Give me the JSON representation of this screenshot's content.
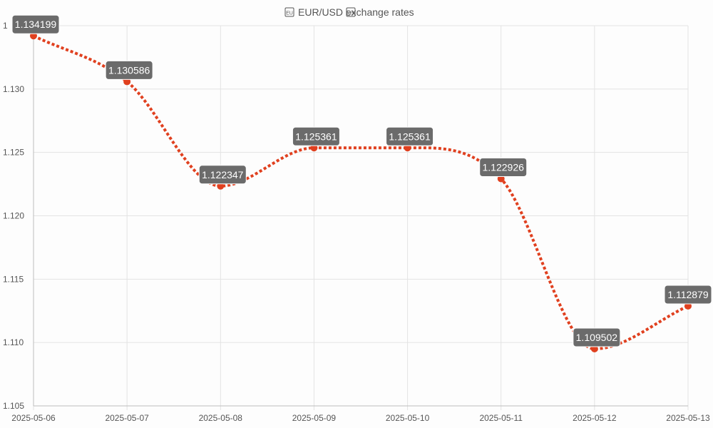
{
  "chart_data": {
    "type": "line",
    "title": "EUR/USD exchange rates",
    "title_icon_left": "eu-flag-icon",
    "title_icon_right": "us-flag-icon",
    "x": [
      "2025-05-06",
      "2025-05-07",
      "2025-05-08",
      "2025-05-09",
      "2025-05-10",
      "2025-05-11",
      "2025-05-12",
      "2025-05-13"
    ],
    "series": [
      {
        "values": [
          1.134199,
          1.130586,
          1.122347,
          1.125361,
          1.125361,
          1.122926,
          1.109502,
          1.112879
        ],
        "color": "#e0401f",
        "line_style": "dotted",
        "smooth": true
      }
    ],
    "data_labels": [
      "1.134199",
      "1.130586",
      "1.122347",
      "1.125361",
      "1.125361",
      "1.122926",
      "1.109502",
      "1.112879"
    ],
    "y_ticks": [
      "1.105",
      "1.110",
      "1.115",
      "1.120",
      "1.125",
      "1.130",
      "1"
    ],
    "ylim": [
      1.105,
      1.135
    ],
    "grid": true,
    "legend": "none",
    "colors": {
      "line": "#e0401f",
      "label_bg": "#6b6b6b",
      "label_text": "#ffffff",
      "grid": "#e3e3e3",
      "axis_text": "#555555"
    }
  }
}
